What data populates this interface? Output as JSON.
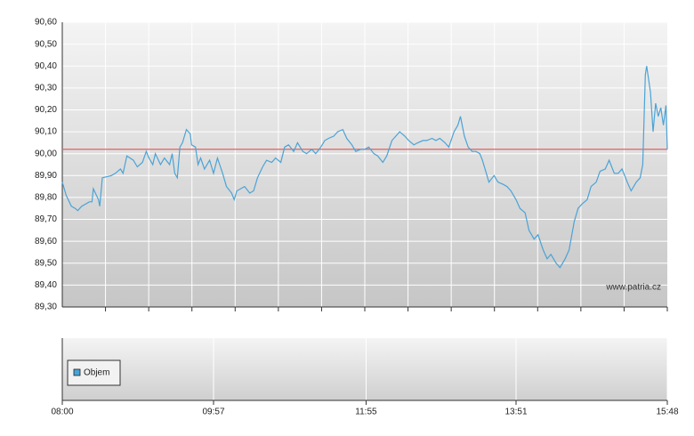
{
  "chart_data": [
    {
      "type": "line",
      "x": [
        480,
        483,
        487,
        490,
        492,
        495,
        501,
        503,
        504,
        508,
        509,
        511,
        518,
        521,
        525,
        527,
        530,
        535,
        538,
        542,
        545,
        547,
        550,
        552,
        556,
        559,
        563,
        565,
        567,
        569,
        571,
        573,
        576,
        579,
        580,
        583,
        585,
        587,
        590,
        594,
        597,
        600,
        604,
        607,
        611,
        613,
        615,
        618,
        621,
        625,
        628,
        631,
        635,
        638,
        642,
        645,
        649,
        652,
        655,
        659,
        662,
        666,
        669,
        673,
        676,
        680,
        683,
        686,
        690,
        693,
        697,
        700,
        704,
        707,
        711,
        714,
        717,
        721,
        724,
        728,
        731,
        735,
        738,
        741,
        745,
        748,
        752,
        755,
        759,
        762,
        766,
        769,
        772,
        776,
        779,
        783,
        786,
        788,
        791,
        794,
        797,
        800,
        803,
        805,
        808,
        810,
        814,
        817,
        821,
        824,
        827,
        831,
        834,
        838,
        841,
        845,
        848,
        852,
        855,
        858,
        862,
        865,
        869,
        872,
        876,
        879,
        882,
        886,
        889,
        893,
        896,
        900,
        903,
        907,
        910,
        913,
        917,
        920,
        924,
        927,
        929,
        931,
        932,
        935,
        937,
        939,
        941,
        943,
        945,
        947,
        948
      ],
      "values": [
        89.87,
        89.81,
        89.76,
        89.75,
        89.74,
        89.76,
        89.78,
        89.78,
        89.84,
        89.79,
        89.76,
        89.89,
        89.9,
        89.91,
        89.93,
        89.91,
        89.99,
        89.97,
        89.94,
        89.96,
        90.01,
        89.98,
        89.95,
        90.0,
        89.95,
        89.98,
        89.95,
        90.0,
        89.91,
        89.89,
        90.03,
        90.05,
        90.11,
        90.09,
        90.04,
        90.03,
        89.95,
        89.98,
        89.93,
        89.97,
        89.91,
        89.98,
        89.91,
        89.85,
        89.82,
        89.79,
        89.83,
        89.84,
        89.85,
        89.82,
        89.83,
        89.89,
        89.94,
        89.97,
        89.96,
        89.98,
        89.96,
        90.03,
        90.04,
        90.01,
        90.05,
        90.01,
        90.0,
        90.02,
        90.0,
        90.03,
        90.06,
        90.07,
        90.08,
        90.1,
        90.11,
        90.07,
        90.04,
        90.01,
        90.02,
        90.02,
        90.03,
        90.0,
        89.99,
        89.96,
        89.99,
        90.06,
        90.08,
        90.1,
        90.08,
        90.06,
        90.04,
        90.05,
        90.06,
        90.06,
        90.07,
        90.06,
        90.07,
        90.05,
        90.03,
        90.1,
        90.13,
        90.17,
        90.08,
        90.03,
        90.01,
        90.01,
        90.0,
        89.97,
        89.91,
        89.87,
        89.9,
        89.87,
        89.86,
        89.85,
        89.83,
        89.79,
        89.75,
        89.73,
        89.65,
        89.61,
        89.63,
        89.56,
        89.52,
        89.54,
        89.5,
        89.48,
        89.52,
        89.56,
        89.69,
        89.75,
        89.77,
        89.79,
        89.85,
        89.87,
        89.92,
        89.93,
        89.97,
        89.91,
        89.91,
        89.93,
        89.87,
        89.83,
        89.87,
        89.89,
        89.95,
        90.36,
        90.4,
        90.28,
        90.1,
        90.23,
        90.17,
        90.21,
        90.13,
        90.22,
        90.02
      ],
      "color": "#4aa3d6",
      "reference": 90.02,
      "reference_color": "#e06060",
      "xlim": [
        480,
        948
      ],
      "ylim": [
        89.3,
        90.6
      ],
      "yticks": [
        {
          "value": 89.3,
          "label": "89,30"
        },
        {
          "value": 89.4,
          "label": "89,40"
        },
        {
          "value": 89.5,
          "label": "89,50"
        },
        {
          "value": 89.6,
          "label": "89,60"
        },
        {
          "value": 89.7,
          "label": "89,70"
        },
        {
          "value": 89.8,
          "label": "89,80"
        },
        {
          "value": 89.9,
          "label": "89,90"
        },
        {
          "value": 90.0,
          "label": "90,00"
        },
        {
          "value": 90.1,
          "label": "90,10"
        },
        {
          "value": 90.2,
          "label": "90,20"
        },
        {
          "value": 90.3,
          "label": "90,30"
        },
        {
          "value": 90.4,
          "label": "90,40"
        },
        {
          "value": 90.5,
          "label": "90,50"
        },
        {
          "value": 90.6,
          "label": "90,60"
        }
      ],
      "watermark": "www.patria.cz"
    },
    {
      "type": "bar",
      "series": [
        {
          "name": "Objem",
          "color": "#4aa3d6",
          "values": []
        }
      ],
      "xlim": [
        480,
        948
      ],
      "xticks": [
        {
          "value": 480,
          "label": "08:00"
        },
        {
          "value": 597,
          "label": "09:57"
        },
        {
          "value": 715,
          "label": "11:55"
        },
        {
          "value": 831,
          "label": "13:51"
        },
        {
          "value": 948,
          "label": "15:48"
        }
      ]
    }
  ]
}
